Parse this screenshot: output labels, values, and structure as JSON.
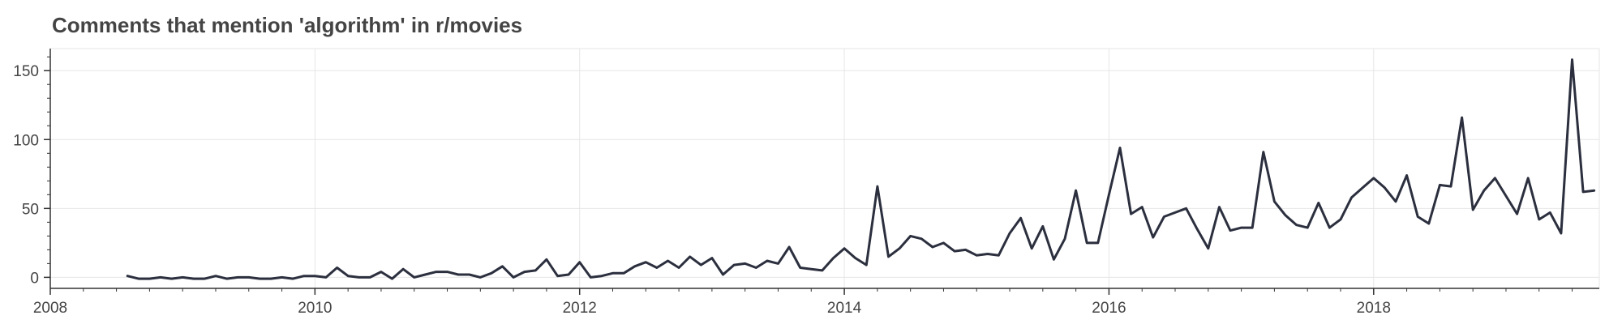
{
  "chart_data": {
    "type": "line",
    "title": "Comments that mention 'algorithm' in r/movies",
    "xlabel": "",
    "ylabel": "",
    "xlim": [
      "2008-01-01",
      "2019-09-15"
    ],
    "ylim": [
      -8,
      166
    ],
    "xticks": [
      "2008",
      "2010",
      "2012",
      "2014",
      "2016",
      "2018"
    ],
    "yticks": [
      0,
      50,
      100,
      150
    ],
    "grid": true,
    "line_color": "#2b2f3e",
    "grid_color": "#e6e6e6",
    "series": [
      {
        "x": [
          "2008-08",
          "2008-09",
          "2008-10",
          "2008-11",
          "2008-12",
          "2009-01",
          "2009-02",
          "2009-03",
          "2009-04",
          "2009-05",
          "2009-06",
          "2009-07",
          "2009-08",
          "2009-09",
          "2009-10",
          "2009-11",
          "2009-12",
          "2010-01",
          "2010-02",
          "2010-03",
          "2010-04",
          "2010-05",
          "2010-06",
          "2010-07",
          "2010-08",
          "2010-09",
          "2010-10",
          "2010-11",
          "2010-12",
          "2011-01",
          "2011-02",
          "2011-03",
          "2011-04",
          "2011-05",
          "2011-06",
          "2011-07",
          "2011-08",
          "2011-09",
          "2011-10",
          "2011-11",
          "2011-12",
          "2012-01",
          "2012-02",
          "2012-03",
          "2012-04",
          "2012-05",
          "2012-06",
          "2012-07",
          "2012-08",
          "2012-09",
          "2012-10",
          "2012-11",
          "2012-12",
          "2013-01",
          "2013-02",
          "2013-03",
          "2013-04",
          "2013-05",
          "2013-06",
          "2013-07",
          "2013-08",
          "2013-09",
          "2013-10",
          "2013-11",
          "2013-12",
          "2014-01",
          "2014-02",
          "2014-03",
          "2014-04",
          "2014-05",
          "2014-06",
          "2014-07",
          "2014-08",
          "2014-09",
          "2014-10",
          "2014-11",
          "2014-12",
          "2015-01",
          "2015-02",
          "2015-03",
          "2015-04",
          "2015-05",
          "2015-06",
          "2015-07",
          "2015-08",
          "2015-09",
          "2015-10",
          "2015-11",
          "2015-12",
          "2016-01",
          "2016-02",
          "2016-03",
          "2016-04",
          "2016-05",
          "2016-06",
          "2016-07",
          "2016-08",
          "2016-09",
          "2016-10",
          "2016-11",
          "2016-12",
          "2017-01",
          "2017-02",
          "2017-03",
          "2017-04",
          "2017-05",
          "2017-06",
          "2017-07",
          "2017-08",
          "2017-09",
          "2017-10",
          "2017-11",
          "2017-12",
          "2018-01",
          "2018-02",
          "2018-03",
          "2018-04",
          "2018-05",
          "2018-06",
          "2018-07",
          "2018-08",
          "2018-09",
          "2018-10",
          "2018-11",
          "2018-12",
          "2019-01",
          "2019-02",
          "2019-03",
          "2019-04",
          "2019-05",
          "2019-06",
          "2019-07",
          "2019-08",
          "2019-09"
        ],
        "y": [
          1,
          -1,
          -1,
          0,
          -1,
          0,
          -1,
          -1,
          1,
          -1,
          0,
          0,
          -1,
          -1,
          0,
          -1,
          1,
          1,
          0,
          7,
          1,
          0,
          0,
          4,
          -1,
          6,
          0,
          2,
          4,
          4,
          2,
          2,
          0,
          3,
          8,
          0,
          4,
          5,
          13,
          1,
          2,
          11,
          0,
          1,
          3,
          3,
          8,
          11,
          7,
          12,
          7,
          15,
          9,
          14,
          2,
          9,
          10,
          7,
          12,
          10,
          22,
          7,
          6,
          5,
          14,
          21,
          14,
          9,
          66,
          15,
          21,
          30,
          28,
          22,
          25,
          19,
          20,
          16,
          17,
          16,
          32,
          43,
          21,
          37,
          13,
          28,
          63,
          25,
          25,
          60,
          94,
          46,
          51,
          29,
          44,
          47,
          50,
          35,
          21,
          51,
          34,
          36,
          36,
          91,
          55,
          45,
          38,
          36,
          54,
          36,
          42,
          58,
          65,
          72,
          65,
          55,
          74,
          44,
          39,
          67,
          66,
          116,
          49,
          63,
          72,
          59,
          46,
          72,
          42,
          47,
          32,
          158,
          62,
          63
        ]
      }
    ]
  }
}
